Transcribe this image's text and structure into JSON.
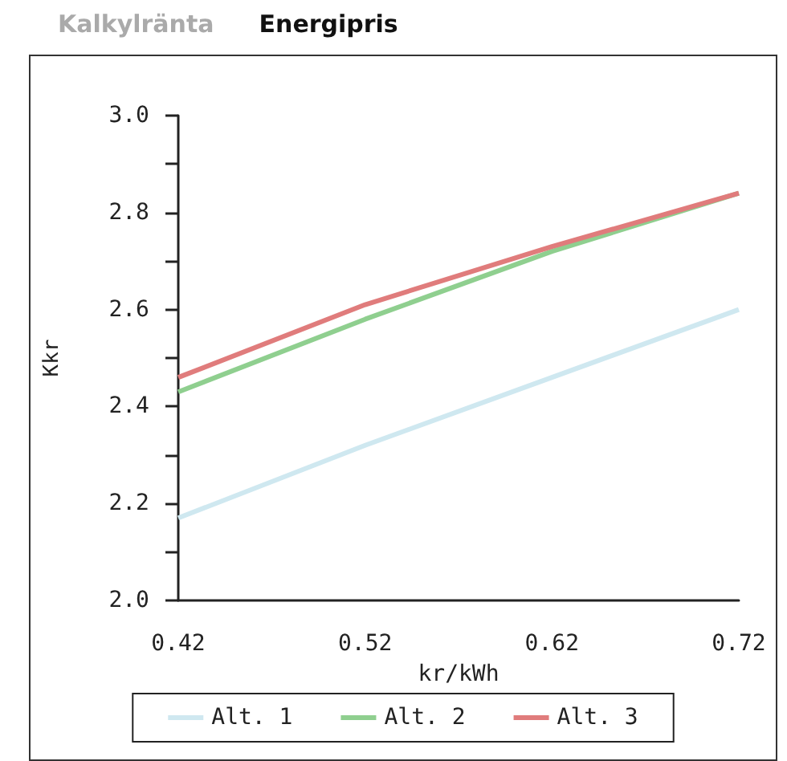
{
  "chart_data": {
    "type": "line",
    "title": "Energipris",
    "annotations": [
      "Kalkylränta"
    ],
    "xlabel": "kr/kWh",
    "ylabel": "Kkr",
    "x": [
      0.42,
      0.52,
      0.62,
      0.72
    ],
    "series": [
      {
        "name": "Alt. 1",
        "color": "#cfe8f0",
        "values": [
          2.17,
          2.32,
          2.46,
          2.6
        ]
      },
      {
        "name": "Alt. 2",
        "color": "#8fcf8f",
        "values": [
          2.43,
          2.58,
          2.72,
          2.84
        ]
      },
      {
        "name": "Alt. 3",
        "color": "#e07c7c",
        "values": [
          2.46,
          2.61,
          2.73,
          2.84
        ]
      }
    ],
    "xlim": [
      0.42,
      0.72
    ],
    "xticks": [
      0.42,
      0.52,
      0.62,
      0.72
    ],
    "ylim": [
      2.0,
      3.0
    ],
    "yticks": [
      {
        "value": 2.0,
        "label": "2.0"
      },
      {
        "value": 2.1,
        "label": null
      },
      2.2,
      {
        "value": 2.3,
        "label": null
      },
      2.4,
      {
        "value": 2.5,
        "label": null
      },
      2.6,
      {
        "value": 2.7,
        "label": null
      },
      2.8,
      {
        "value": 2.9,
        "label": null
      },
      {
        "value": 3.0,
        "label": "3.0"
      }
    ],
    "grid": false,
    "legend": "bottom",
    "marker": "none",
    "line_style": "solid"
  }
}
